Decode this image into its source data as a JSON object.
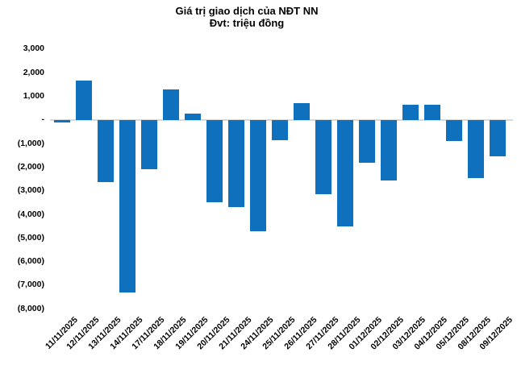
{
  "chart_data": {
    "type": "bar",
    "title": "Giá trị giao dịch của NĐT NN",
    "subtitle": "Đvt: triệu đồng",
    "categories": [
      "11/11/2025",
      "12/11/2025",
      "13/11/2025",
      "14/11/2025",
      "17/11/2025",
      "18/11/2025",
      "19/11/2025",
      "20/11/2025",
      "21/11/2025",
      "24/11/2025",
      "25/11/2025",
      "26/11/2025",
      "27/11/2025",
      "28/11/2025",
      "01/12/2025",
      "02/12/2025",
      "03/12/2025",
      "04/12/2025",
      "05/12/2025",
      "08/12/2025",
      "09/12/2025"
    ],
    "values": [
      -100,
      1650,
      -2650,
      -7300,
      -2100,
      1300,
      250,
      -3500,
      -3700,
      -4700,
      -850,
      700,
      -3150,
      -4500,
      -1800,
      -2550,
      650,
      650,
      -900,
      -2450,
      -1550
    ],
    "ylabel": "",
    "xlabel": "",
    "ylim": [
      -8000,
      3000
    ],
    "ytick_step": 1000,
    "ytick_labels": [
      "3,000",
      "2,000",
      "1,000",
      "-",
      "(1,000)",
      "(2,000)",
      "(3,000)",
      "(4,000)",
      "(5,000)",
      "(6,000)",
      "(7,000)",
      "(8,000)"
    ],
    "xtick_rotation": 45,
    "bar_color": "#0F71BD",
    "axis_line_color": "#D9D9D9",
    "text_color": "#000000",
    "grid": false,
    "legend": false
  }
}
